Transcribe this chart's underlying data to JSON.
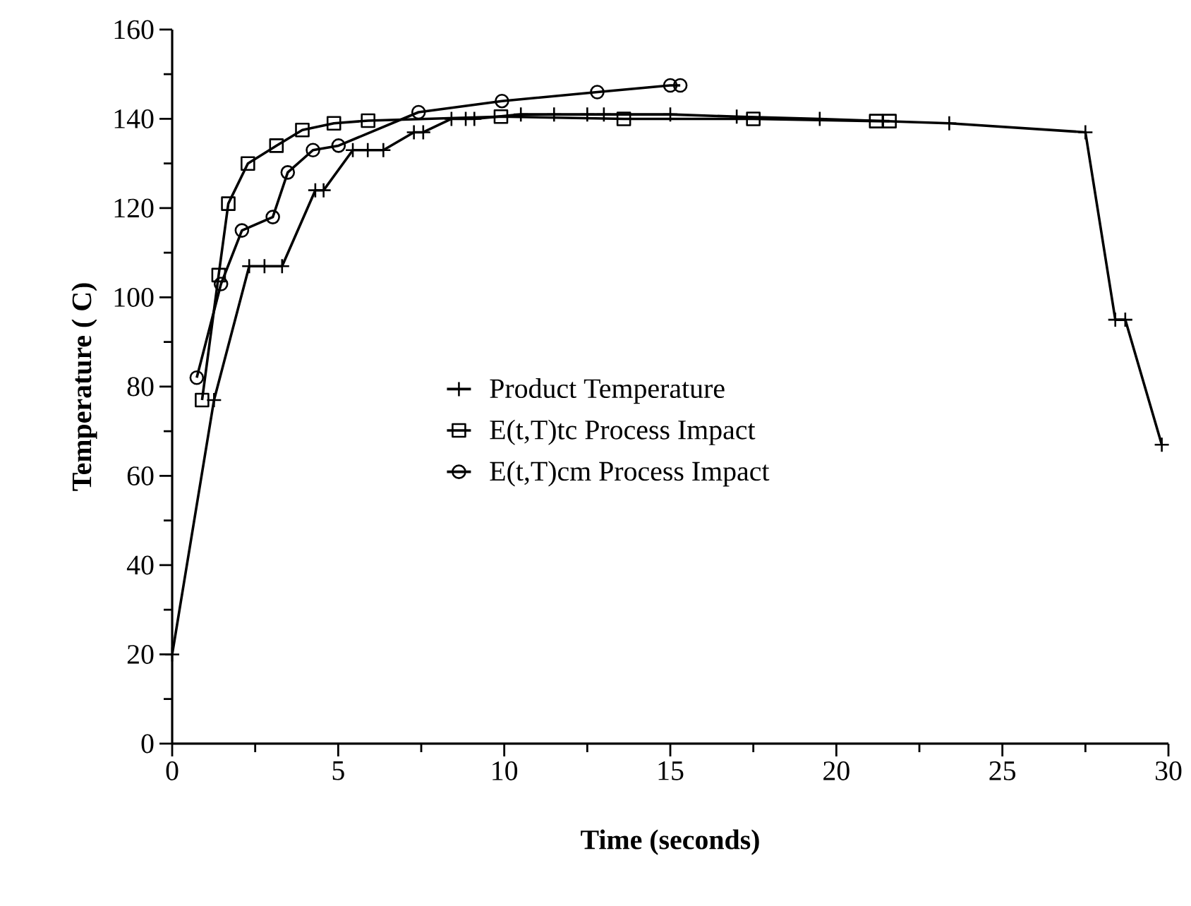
{
  "chart_data": {
    "type": "line",
    "xlabel": "Time (seconds)",
    "ylabel": "Temperature ( C)",
    "xlim": [
      0,
      30
    ],
    "ylim": [
      0,
      160
    ],
    "xticks": [
      0,
      5,
      10,
      15,
      20,
      25,
      30
    ],
    "yticks": [
      0,
      20,
      40,
      60,
      80,
      100,
      120,
      140,
      160
    ],
    "grid": false,
    "legend": "center",
    "line_style": "solid",
    "series": [
      {
        "name": "Product Temperature",
        "color": "#000000",
        "marker": "cross",
        "x": [
          0,
          1.26,
          2.32,
          2.78,
          3.31,
          4.31,
          4.56,
          5.44,
          5.89,
          6.36,
          7.28,
          7.56,
          8.41,
          8.84,
          9.1,
          10.5,
          11.5,
          12.5,
          13.0,
          15,
          17,
          19.5,
          23.4,
          27.5,
          28.4,
          28.7,
          29.8
        ],
        "values": [
          20,
          77,
          107,
          107,
          107,
          124,
          124,
          133,
          133,
          133,
          137,
          137,
          140,
          140,
          140,
          141,
          141,
          141,
          141,
          141,
          140.5,
          140,
          139,
          137,
          95,
          95,
          67
        ]
      },
      {
        "name": "E(t,T)tc Process Impact",
        "color": "#000000",
        "marker": "square",
        "x": [
          0.9,
          1.4,
          1.69,
          2.28,
          3.14,
          3.92,
          4.87,
          5.9,
          9.9,
          13.6,
          17.5,
          21.2,
          21.6
        ],
        "values": [
          77,
          105,
          121,
          130,
          134,
          137.5,
          139,
          139.6,
          140.5,
          140,
          140,
          139.5,
          139.5
        ]
      },
      {
        "name": "E(t,T)cm Process Impact",
        "color": "#000000",
        "marker": "circle",
        "x": [
          0.74,
          1.47,
          2.1,
          3.03,
          3.48,
          4.24,
          5.01,
          7.42,
          9.93,
          12.8,
          15.0,
          15.3
        ],
        "values": [
          82,
          103,
          115,
          118,
          128,
          133,
          134,
          141.5,
          144,
          146,
          147.5,
          147.5
        ]
      }
    ]
  }
}
